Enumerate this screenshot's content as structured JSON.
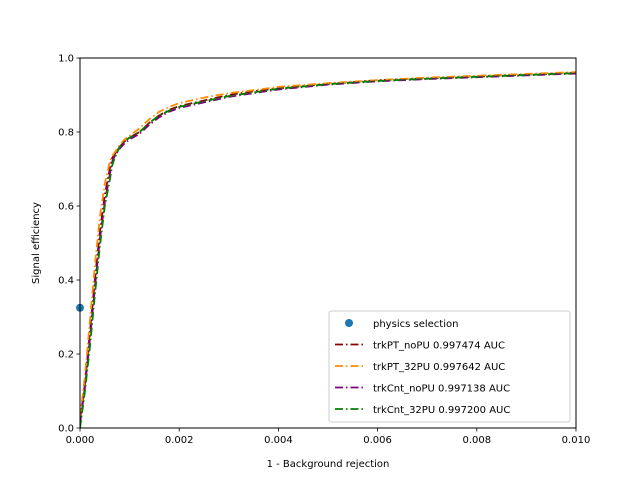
{
  "chart_data": {
    "type": "line",
    "title": "",
    "xlabel": "1 - Background rejection",
    "ylabel": "Signal efficiency",
    "xlim": [
      0.0,
      0.01
    ],
    "ylim": [
      0.0,
      1.0
    ],
    "xticks": [
      "0.000",
      "0.002",
      "0.004",
      "0.006",
      "0.008",
      "0.010"
    ],
    "yticks": [
      "0.0",
      "0.2",
      "0.4",
      "0.6",
      "0.8",
      "1.0"
    ],
    "grid": false,
    "legend": "lower-right",
    "points": [
      {
        "name": "physics selection",
        "color": "#1f77b4",
        "x": 0.0,
        "y": 0.325
      }
    ],
    "series": [
      {
        "name": "trkPT_noPU 0.997474 AUC",
        "color": "#8b0000",
        "x": [
          0.0,
          0.0001,
          0.0002,
          0.0003,
          0.0004,
          0.0005,
          0.0006,
          0.00065,
          0.0007,
          0.0008,
          0.0009,
          0.001,
          0.0012,
          0.0014,
          0.0016,
          0.0018,
          0.002,
          0.0025,
          0.003,
          0.0035,
          0.004,
          0.005,
          0.006,
          0.007,
          0.008,
          0.009,
          0.01
        ],
        "y": [
          0.02,
          0.12,
          0.26,
          0.4,
          0.53,
          0.63,
          0.7,
          0.73,
          0.74,
          0.76,
          0.775,
          0.785,
          0.8,
          0.825,
          0.845,
          0.86,
          0.87,
          0.885,
          0.9,
          0.91,
          0.918,
          0.93,
          0.94,
          0.945,
          0.95,
          0.955,
          0.96
        ]
      },
      {
        "name": "trkPT_32PU 0.997642 AUC",
        "color": "#ff8c00",
        "x": [
          0.0,
          0.0001,
          0.0002,
          0.0003,
          0.0004,
          0.0005,
          0.0006,
          0.00065,
          0.0007,
          0.0008,
          0.0009,
          0.001,
          0.0012,
          0.0014,
          0.0016,
          0.0018,
          0.002,
          0.0025,
          0.003,
          0.0035,
          0.004,
          0.005,
          0.006,
          0.007,
          0.008,
          0.009,
          0.01
        ],
        "y": [
          0.03,
          0.14,
          0.29,
          0.44,
          0.57,
          0.66,
          0.72,
          0.735,
          0.745,
          0.765,
          0.78,
          0.79,
          0.81,
          0.835,
          0.855,
          0.868,
          0.878,
          0.893,
          0.905,
          0.913,
          0.922,
          0.932,
          0.94,
          0.947,
          0.952,
          0.957,
          0.962
        ]
      },
      {
        "name": "trkCnt_noPU 0.997138 AUC",
        "color": "#800080",
        "x": [
          0.0,
          0.0001,
          0.0002,
          0.0003,
          0.0004,
          0.0005,
          0.0006,
          0.00065,
          0.0007,
          0.0008,
          0.0009,
          0.001,
          0.0012,
          0.0014,
          0.0016,
          0.0018,
          0.002,
          0.0025,
          0.003,
          0.0035,
          0.004,
          0.005,
          0.006,
          0.007,
          0.008,
          0.009,
          0.01
        ],
        "y": [
          0.01,
          0.11,
          0.24,
          0.38,
          0.51,
          0.61,
          0.685,
          0.72,
          0.735,
          0.755,
          0.77,
          0.78,
          0.795,
          0.82,
          0.84,
          0.855,
          0.865,
          0.88,
          0.895,
          0.905,
          0.915,
          0.928,
          0.937,
          0.943,
          0.948,
          0.953,
          0.958
        ]
      },
      {
        "name": "trkCnt_32PU 0.997200 AUC",
        "color": "#008000",
        "x": [
          0.0,
          0.0001,
          0.0002,
          0.0003,
          0.0004,
          0.0005,
          0.0006,
          0.00065,
          0.0007,
          0.0008,
          0.0009,
          0.001,
          0.0012,
          0.0014,
          0.0016,
          0.0018,
          0.002,
          0.0025,
          0.003,
          0.0035,
          0.004,
          0.005,
          0.006,
          0.007,
          0.008,
          0.009,
          0.01
        ],
        "y": [
          0.0,
          0.1,
          0.22,
          0.36,
          0.49,
          0.6,
          0.67,
          0.71,
          0.73,
          0.76,
          0.775,
          0.785,
          0.8,
          0.825,
          0.845,
          0.858,
          0.868,
          0.883,
          0.897,
          0.907,
          0.917,
          0.929,
          0.938,
          0.944,
          0.949,
          0.954,
          0.959
        ]
      }
    ]
  }
}
